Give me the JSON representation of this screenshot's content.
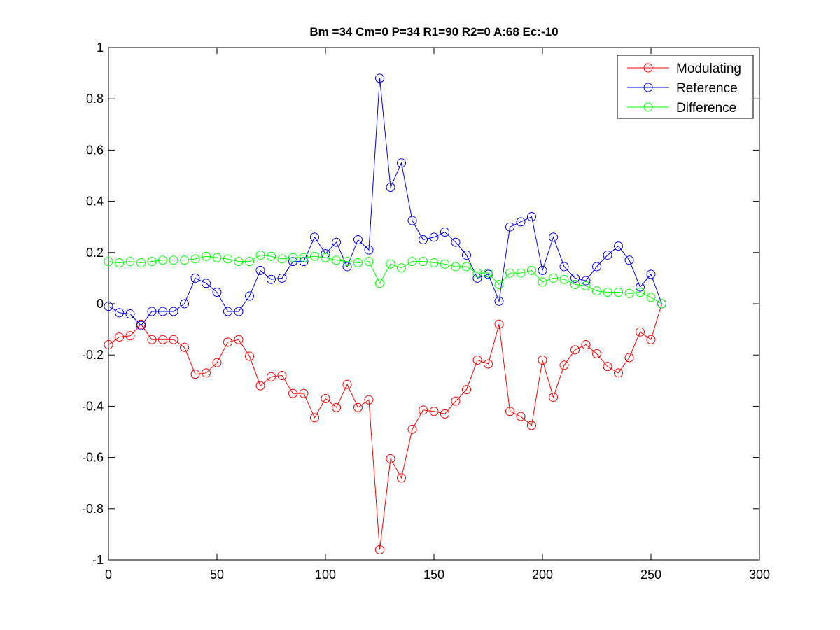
{
  "chart_data": {
    "type": "line",
    "title": "Bm =34  Cm=0  P=34  R1=90  R2=0  A:68  Ec:-10",
    "xlabel": "",
    "ylabel": "",
    "xlim": [
      0,
      300
    ],
    "ylim": [
      -1,
      1
    ],
    "xticks": [
      0,
      50,
      100,
      150,
      200,
      250,
      300
    ],
    "yticks": [
      -1,
      -0.8,
      -0.6,
      -0.4,
      -0.2,
      0,
      0.2,
      0.4,
      0.6,
      0.8,
      1
    ],
    "xtick_labels": [
      "0",
      "50",
      "100",
      "150",
      "200",
      "250",
      "300"
    ],
    "ytick_labels": [
      "-1",
      "-0.8",
      "-0.6",
      "-0.4",
      "-0.2",
      "0",
      "0.2",
      "0.4",
      "0.6",
      "0.8",
      "1"
    ],
    "grid": false,
    "legend_position": "top-right",
    "marker": "circle",
    "x": [
      0,
      5,
      10,
      15,
      20,
      25,
      30,
      35,
      40,
      45,
      50,
      55,
      60,
      65,
      70,
      75,
      80,
      85,
      90,
      95,
      100,
      105,
      110,
      115,
      120,
      125,
      130,
      135,
      140,
      145,
      150,
      155,
      160,
      165,
      170,
      175,
      180,
      185,
      190,
      195,
      200,
      205,
      210,
      215,
      220,
      225,
      230,
      235,
      240,
      245,
      250,
      255
    ],
    "series": [
      {
        "name": "Modulating",
        "color": "#ff0000",
        "values": [
          -0.16,
          -0.13,
          -0.125,
          -0.08,
          -0.14,
          -0.14,
          -0.14,
          -0.17,
          -0.275,
          -0.27,
          -0.23,
          -0.15,
          -0.14,
          -0.205,
          -0.32,
          -0.285,
          -0.28,
          -0.35,
          -0.35,
          -0.445,
          -0.37,
          -0.405,
          -0.315,
          -0.405,
          -0.375,
          -0.96,
          -0.605,
          -0.68,
          -0.49,
          -0.415,
          -0.42,
          -0.43,
          -0.38,
          -0.335,
          -0.22,
          -0.235,
          -0.08,
          -0.42,
          -0.44,
          -0.475,
          -0.22,
          -0.365,
          -0.24,
          -0.18,
          -0.16,
          -0.195,
          -0.245,
          -0.27,
          -0.21,
          -0.11,
          -0.14,
          0.0
        ]
      },
      {
        "name": "Reference",
        "color": "#0000ff",
        "values": [
          -0.01,
          -0.035,
          -0.04,
          -0.085,
          -0.03,
          -0.03,
          -0.03,
          0.0,
          0.1,
          0.08,
          0.045,
          -0.03,
          -0.03,
          0.03,
          0.13,
          0.095,
          0.1,
          0.165,
          0.165,
          0.26,
          0.195,
          0.24,
          0.145,
          0.25,
          0.21,
          0.88,
          0.455,
          0.55,
          0.325,
          0.25,
          0.26,
          0.28,
          0.24,
          0.19,
          0.1,
          0.115,
          0.01,
          0.3,
          0.32,
          0.34,
          0.13,
          0.26,
          0.145,
          0.1,
          0.09,
          0.145,
          0.19,
          0.225,
          0.17,
          0.065,
          0.115,
          0.0
        ]
      },
      {
        "name": "Difference",
        "color": "#00ff00",
        "values": [
          0.165,
          0.16,
          0.165,
          0.16,
          0.165,
          0.17,
          0.17,
          0.17,
          0.175,
          0.185,
          0.18,
          0.175,
          0.165,
          0.165,
          0.19,
          0.185,
          0.175,
          0.18,
          0.18,
          0.185,
          0.18,
          0.17,
          0.165,
          0.16,
          0.165,
          0.08,
          0.155,
          0.14,
          0.165,
          0.165,
          0.16,
          0.155,
          0.145,
          0.145,
          0.12,
          0.12,
          0.075,
          0.12,
          0.12,
          0.13,
          0.085,
          0.1,
          0.095,
          0.075,
          0.07,
          0.05,
          0.045,
          0.045,
          0.04,
          0.045,
          0.025,
          0.0
        ]
      }
    ]
  }
}
